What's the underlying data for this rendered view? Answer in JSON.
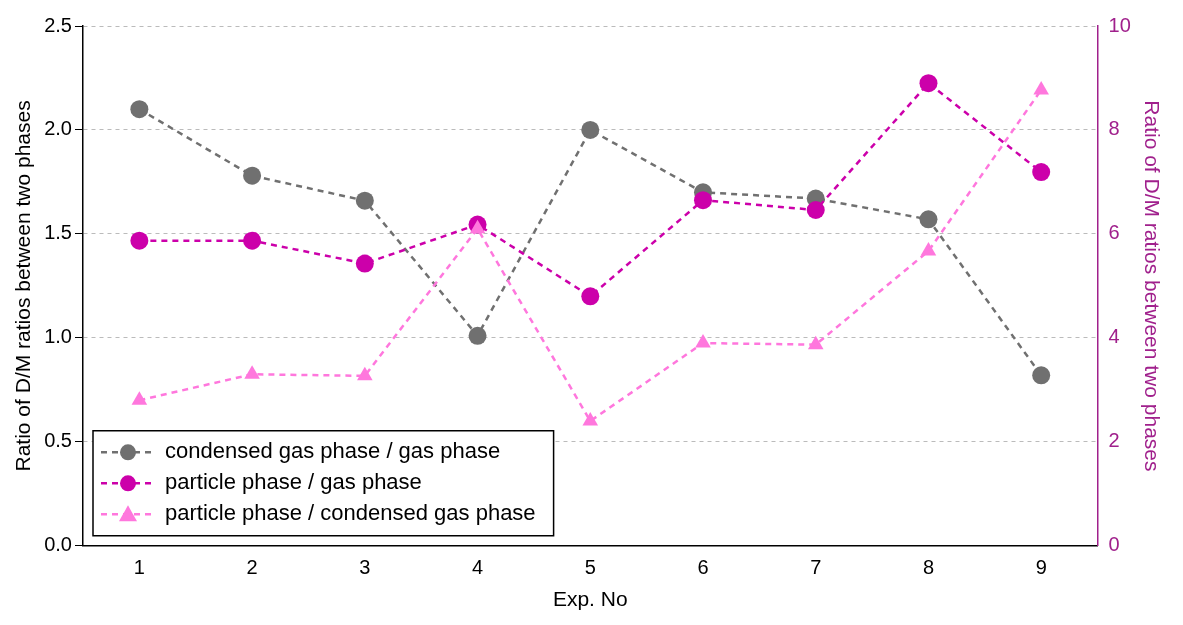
{
  "chart_data": {
    "type": "line",
    "xlabel": "Exp. No",
    "ylabel": "Ratio of D/M ratios between two phases",
    "y2label": "Ratio of D/M ratios between two phases",
    "categories": [
      "1",
      "2",
      "3",
      "4",
      "5",
      "6",
      "7",
      "8",
      "9"
    ],
    "series": [
      {
        "name": "condensed gas phase / gas phase",
        "color": "#707070",
        "marker": "circle",
        "values": [
          2.1,
          1.78,
          1.66,
          1.01,
          2.0,
          1.7,
          1.67,
          1.57,
          0.82
        ]
      },
      {
        "name": "particle phase / gas phase",
        "color": "#cc00aa",
        "marker": "circle",
        "axis": "y2",
        "values": [
          5.87,
          5.87,
          5.43,
          6.18,
          4.8,
          6.65,
          6.46,
          8.9,
          7.19
        ]
      },
      {
        "name": "particle phase / condensed gas phase",
        "color": "#ff77dd",
        "marker": "triangle",
        "axis": "y2",
        "values": [
          2.8,
          3.3,
          3.27,
          6.1,
          2.4,
          3.9,
          3.87,
          5.67,
          8.77
        ]
      }
    ],
    "ylim": [
      0,
      2.5
    ],
    "yticks": [
      {
        "value": 0,
        "label": "0.0"
      },
      {
        "value": 0.5,
        "label": "0.5"
      },
      {
        "value": 1,
        "label": "1.0"
      },
      {
        "value": 1.5,
        "label": "1.5"
      },
      {
        "value": 2,
        "label": "2.0"
      },
      {
        "value": 2.5,
        "label": "2.5"
      }
    ],
    "y2lim": [
      0,
      10
    ],
    "y2ticks": [
      0,
      2,
      4,
      6,
      8,
      10
    ],
    "grid": "y",
    "legend": "bottom left",
    "line_style": "dashed"
  }
}
